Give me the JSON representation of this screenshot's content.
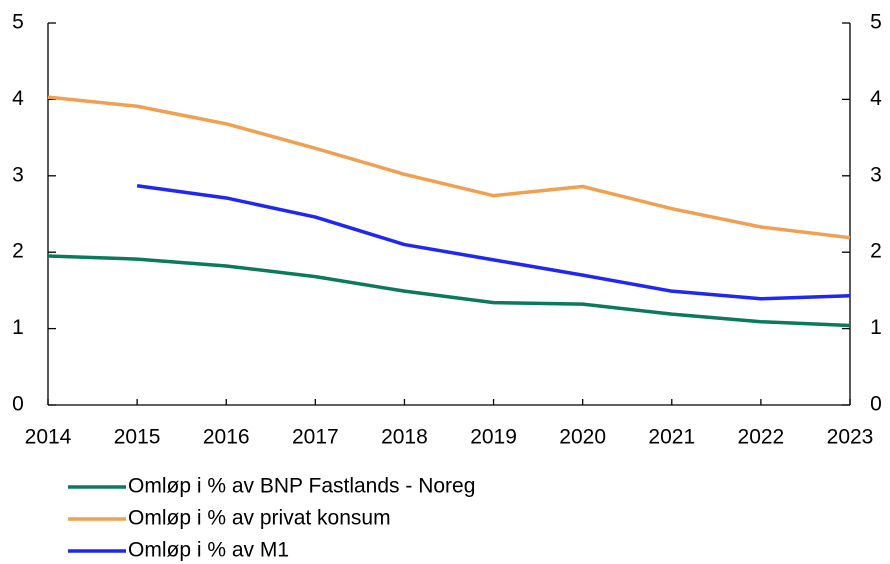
{
  "chart_data": {
    "type": "line",
    "x": [
      2014,
      2015,
      2016,
      2017,
      2018,
      2019,
      2020,
      2021,
      2022,
      2023
    ],
    "xlim": [
      2014,
      2023
    ],
    "xticks": [
      2014,
      2015,
      2016,
      2017,
      2018,
      2019,
      2020,
      2021,
      2022,
      2023
    ],
    "ylim": [
      0,
      5
    ],
    "yticks": [
      0,
      1,
      2,
      3,
      4,
      5
    ],
    "y2lim": [
      0,
      5
    ],
    "y2ticks": [
      0,
      1,
      2,
      3,
      4,
      5
    ],
    "legend": "bottom",
    "series": [
      {
        "name": "Omløp i % av BNP Fastlands - Noreg",
        "color": "#0b7a5c",
        "values": [
          1.95,
          1.91,
          1.82,
          1.68,
          1.49,
          1.34,
          1.32,
          1.19,
          1.09,
          1.04
        ]
      },
      {
        "name": "Omløp i % av privat konsum",
        "color": "#f0a050",
        "values": [
          4.03,
          3.91,
          3.68,
          3.36,
          3.02,
          2.74,
          2.86,
          2.57,
          2.33,
          2.19
        ]
      },
      {
        "name": "Omløp i % av M1",
        "color": "#1f26f5",
        "values": [
          null,
          2.87,
          2.71,
          2.46,
          2.1,
          1.9,
          1.7,
          1.49,
          1.39,
          1.43
        ]
      }
    ]
  }
}
